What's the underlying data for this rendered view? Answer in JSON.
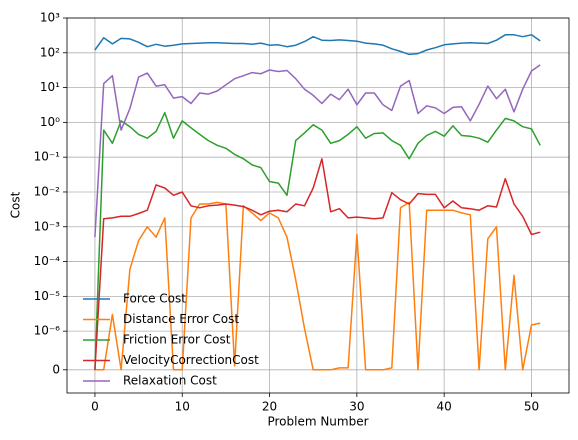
{
  "chart_data": {
    "type": "line",
    "yscale": "symlog",
    "linthresh": 1e-06,
    "grid": true,
    "legend": "lower left",
    "xlabel": "Problem Number",
    "ylabel": "Cost",
    "x": [
      0,
      1,
      2,
      3,
      4,
      5,
      6,
      7,
      8,
      9,
      10,
      11,
      12,
      13,
      14,
      15,
      16,
      17,
      18,
      19,
      20,
      21,
      22,
      23,
      24,
      25,
      26,
      27,
      28,
      29,
      30,
      31,
      32,
      33,
      34,
      35,
      36,
      37,
      38,
      39,
      40,
      41,
      42,
      43,
      44,
      45,
      46,
      47,
      48,
      49,
      50,
      51
    ],
    "xlim": [
      -3.2,
      54.3
    ],
    "xticks": [
      0,
      10,
      20,
      30,
      40,
      50
    ],
    "ylim": [
      -6e-07,
      1000
    ],
    "yticks": [
      0,
      {
        "value": 1e-06,
        "label": "10⁻⁶"
      },
      {
        "value": 1e-05,
        "label": "10⁻⁵"
      },
      {
        "value": 0.0001,
        "label": "10⁻⁴"
      },
      {
        "value": 0.001,
        "label": "10⁻³"
      },
      {
        "value": 0.01,
        "label": "10⁻²"
      },
      {
        "value": 0.1,
        "label": "10⁻¹"
      },
      {
        "value": 1,
        "label": "10⁰"
      },
      {
        "value": 10,
        "label": "10¹"
      },
      {
        "value": 100,
        "label": "10²"
      },
      {
        "value": 1000,
        "label": "10³"
      }
    ],
    "series": [
      {
        "name": "Force Cost",
        "color": "#1f77b4",
        "values": [
          120,
          270,
          180,
          260,
          250,
          200,
          150,
          175,
          155,
          165,
          180,
          185,
          190,
          195,
          195,
          190,
          185,
          185,
          175,
          190,
          165,
          170,
          150,
          165,
          210,
          290,
          230,
          225,
          235,
          225,
          215,
          190,
          180,
          165,
          130,
          110,
          90,
          95,
          120,
          140,
          170,
          180,
          190,
          195,
          190,
          185,
          230,
          330,
          330,
          290,
          330,
          220
        ]
      },
      {
        "name": "Distance Error Cost",
        "color": "#ff7f0e",
        "values": [
          0,
          0,
          3e-06,
          0,
          6e-05,
          0.0004,
          0.001,
          0.0005,
          0.0018,
          0,
          0,
          0.0018,
          0.0045,
          0.0045,
          0.005,
          0.0045,
          1e-07,
          0.004,
          0.0025,
          0.0015,
          0.0025,
          0.0018,
          0.0005,
          3e-05,
          1.2e-06,
          0,
          0,
          0,
          5e-08,
          5e-08,
          0.0006,
          0,
          0,
          0,
          5e-08,
          0.0035,
          0.005,
          0,
          0.003,
          0.003,
          0.003,
          0.003,
          0.0025,
          0.0022,
          0,
          0.00045,
          0.001,
          0,
          4e-05,
          0,
          1.5e-06,
          1.7e-06
        ]
      },
      {
        "name": "Friction Error Cost",
        "color": "#2ca02c",
        "values": [
          0,
          0.6,
          0.25,
          1.1,
          0.75,
          0.45,
          0.35,
          0.55,
          1.9,
          0.35,
          1.1,
          0.7,
          0.45,
          0.3,
          0.22,
          0.18,
          0.12,
          0.09,
          0.06,
          0.05,
          0.02,
          0.018,
          0.008,
          0.3,
          0.5,
          0.85,
          0.6,
          0.25,
          0.3,
          0.45,
          0.75,
          0.35,
          0.48,
          0.5,
          0.3,
          0.22,
          0.09,
          0.25,
          0.42,
          0.55,
          0.4,
          0.8,
          0.42,
          0.4,
          0.35,
          0.27,
          0.6,
          1.3,
          1.1,
          0.75,
          0.65,
          0.22
        ]
      },
      {
        "name": "VelocityCorrectionCost",
        "color": "#d62728",
        "values": [
          0,
          0.0017,
          0.0018,
          0.002,
          0.002,
          0.0024,
          0.003,
          0.016,
          0.013,
          0.008,
          0.01,
          0.004,
          0.0035,
          0.004,
          0.0042,
          0.0045,
          0.0042,
          0.0038,
          0.003,
          0.0022,
          0.0028,
          0.003,
          0.0027,
          0.0045,
          0.004,
          0.013,
          0.09,
          0.0027,
          0.0033,
          0.0018,
          0.0019,
          0.0018,
          0.0017,
          0.0018,
          0.0095,
          0.006,
          0.0045,
          0.009,
          0.0085,
          0.0085,
          0.0035,
          0.0055,
          0.0035,
          0.0033,
          0.003,
          0.004,
          0.0037,
          0.024,
          0.0045,
          0.002,
          0.0006,
          0.0007
        ]
      },
      {
        "name": "Relaxation Cost",
        "color": "#9467bd",
        "values": [
          0.0005,
          13,
          22,
          0.6,
          2.5,
          20,
          26,
          11,
          12,
          5,
          5.5,
          3.5,
          7,
          6.5,
          8,
          12,
          18,
          22,
          27,
          25,
          32,
          29,
          31,
          18,
          9,
          6,
          3.5,
          6.5,
          4.5,
          9,
          3.2,
          7,
          7,
          3.2,
          2.2,
          11,
          16,
          1.8,
          3,
          2.6,
          1.8,
          2.7,
          2.8,
          1.1,
          3.3,
          11,
          4.8,
          9,
          2,
          9,
          30,
          45
        ]
      }
    ]
  }
}
